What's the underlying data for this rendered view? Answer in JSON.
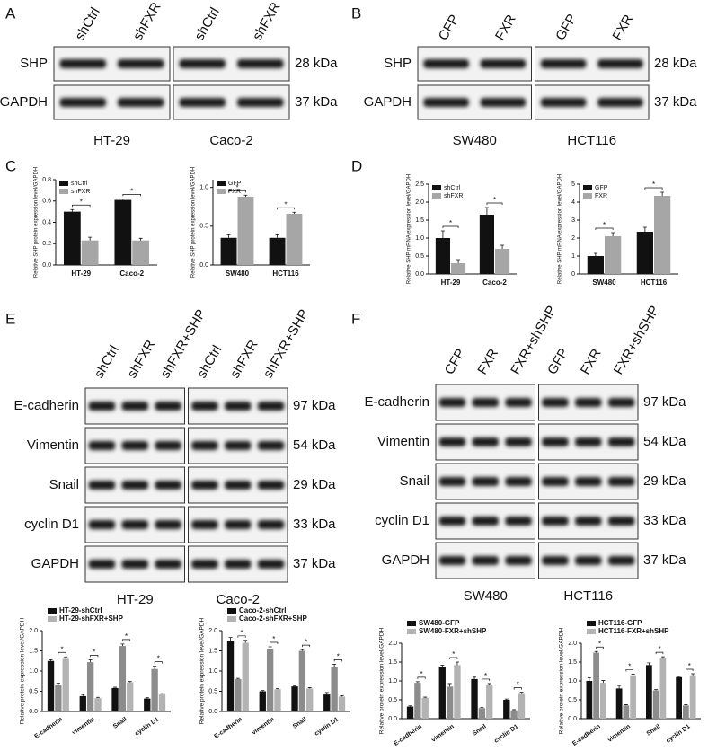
{
  "panel_labels": [
    "A",
    "B",
    "C",
    "D",
    "E",
    "F"
  ],
  "blots": [
    {
      "lanes": [
        "shCtrl",
        "shFXR",
        "shCtrl",
        "shFXR"
      ],
      "groups": [
        "HT-29",
        "Caco-2"
      ],
      "rows": [
        "SHP",
        "GAPDH"
      ],
      "sizes": [
        "28 kDa",
        "37 kDa"
      ]
    },
    {
      "lanes": [
        "CFP",
        "FXR",
        "GFP",
        "FXR"
      ],
      "groups": [
        "SW480",
        "HCT116"
      ],
      "rows": [
        "SHP",
        "GAPDH"
      ],
      "sizes": [
        "28 kDa",
        "37 kDa"
      ]
    },
    {
      "lanes": [
        "shCtrl",
        "shFXR",
        "shFXR+SHP",
        "shCtrl",
        "shFXR",
        "shFXR+SHP"
      ],
      "groups": [
        "HT-29",
        "Caco-2"
      ],
      "rows": [
        "E-cadherin",
        "Vimentin",
        "Snail",
        "cyclin D1",
        "GAPDH"
      ],
      "sizes": [
        "97 kDa",
        "54 kDa",
        "29 kDa",
        "33 kDa",
        "37 kDa"
      ]
    },
    {
      "lanes": [
        "CFP",
        "FXR",
        "FXR+shSHP",
        "GFP",
        "FXR",
        "FXR+shSHP"
      ],
      "groups": [
        "SW480",
        "HCT116"
      ],
      "rows": [
        "E-cadherin",
        "Vimentin",
        "Snail",
        "cyclin D1",
        "GAPDH"
      ],
      "sizes": [
        "97 kDa",
        "54 kDa",
        "29 kDa",
        "33 kDa",
        "37 kDa"
      ]
    }
  ],
  "chart_data": [
    {
      "type": "bar",
      "y_label": "Relative SHP protein expression level/GAPDH",
      "categories": [
        "HT-29",
        "Caco-2"
      ],
      "series": [
        {
          "name": "shCtrl",
          "color": "#111111",
          "values": [
            0.5,
            0.61
          ],
          "errors": [
            0.02,
            0.01
          ]
        },
        {
          "name": "shFXR",
          "color": "#a6a6a6",
          "values": [
            0.23,
            0.23
          ],
          "errors": [
            0.03,
            0.02
          ]
        }
      ],
      "ylim": [
        0,
        0.8
      ],
      "yticks": [
        {
          "value": 0,
          "label": "0.0"
        },
        0.2,
        0.4,
        0.6,
        0.8
      ],
      "legend": "upper left",
      "significance": [
        "*",
        "*"
      ]
    },
    {
      "type": "bar",
      "y_label": "Relative SHP protein expression level/GAPDH",
      "categories": [
        "SW480",
        "HCT116"
      ],
      "series": [
        {
          "name": "GFP",
          "color": "#111111",
          "values": [
            0.35,
            0.35
          ],
          "errors": [
            0.04,
            0.04
          ]
        },
        {
          "name": "FXR",
          "color": "#a6a6a6",
          "values": [
            0.88,
            0.66
          ],
          "errors": [
            0.02,
            0.02
          ]
        }
      ],
      "ylim": [
        0,
        1.1
      ],
      "yticks": [
        {
          "value": 0,
          "label": "0.0"
        },
        0.5,
        {
          "value": 1,
          "label": "1.0"
        }
      ],
      "legend": "upper left",
      "significance": [
        "*",
        "*"
      ]
    },
    {
      "type": "bar",
      "y_label": "Relative SHP mRNA expression level/GAPDH",
      "categories": [
        "HT-29",
        "Caco-2"
      ],
      "series": [
        {
          "name": "shCtrl",
          "color": "#111111",
          "values": [
            1.0,
            1.65
          ],
          "errors": [
            0.2,
            0.2
          ]
        },
        {
          "name": "shFXR",
          "color": "#a6a6a6",
          "values": [
            0.3,
            0.7
          ],
          "errors": [
            0.1,
            0.1
          ]
        }
      ],
      "ylim": [
        0,
        2.5
      ],
      "yticks": [
        {
          "value": 0,
          "label": "0.0"
        },
        0.5,
        {
          "value": 1,
          "label": "1.0"
        },
        1.5,
        {
          "value": 2,
          "label": "2.0"
        },
        2.5
      ],
      "legend": "upper left",
      "significance": [
        "*",
        "*"
      ]
    },
    {
      "type": "bar",
      "y_label": "Relative SHP mRNA expression level/GAPDH",
      "categories": [
        "SW480",
        "HCT116"
      ],
      "series": [
        {
          "name": "GFP",
          "color": "#111111",
          "values": [
            1.0,
            2.35
          ],
          "errors": [
            0.15,
            0.25
          ]
        },
        {
          "name": "FXR",
          "color": "#a6a6a6",
          "values": [
            2.1,
            4.35
          ],
          "errors": [
            0.2,
            0.2
          ]
        }
      ],
      "ylim": [
        0,
        5
      ],
      "yticks": [
        0,
        1,
        2,
        3,
        4,
        5
      ],
      "legend": "upper left",
      "significance": [
        "*",
        "*"
      ]
    },
    {
      "type": "bar",
      "y_label": "Relative protein expression level/GAPDH",
      "categories": [
        "E-cadherin",
        "vimentin",
        "Snail",
        "cyclin D1"
      ],
      "series": [
        {
          "name": "HT-29-shCtrl",
          "color": "#111111",
          "values": [
            1.25,
            0.38,
            0.58,
            0.32
          ],
          "errors": [
            0.03,
            0.04,
            0.02,
            0.02
          ]
        },
        {
          "color": "#8c8c8c",
          "values": [
            0.65,
            1.22,
            1.62,
            1.05
          ],
          "errors": [
            0.05,
            0.06,
            0.05,
            0.07
          ]
        },
        {
          "name": "HT-29-shFXR+SHP",
          "color": "#b3b3b3",
          "values": [
            1.3,
            0.33,
            0.72,
            0.42
          ],
          "errors": [
            0.05,
            0.02,
            0.02,
            0.02
          ]
        }
      ],
      "ylim": [
        0,
        2
      ],
      "yticks": [
        {
          "value": 0,
          "label": "0.0"
        },
        0.5,
        {
          "value": 1,
          "label": "1.0"
        },
        1.5,
        {
          "value": 2,
          "label": "2.0"
        }
      ],
      "legend": "top",
      "significance": [
        "*",
        "*",
        "*",
        "*"
      ]
    },
    {
      "type": "bar",
      "y_label": "Relative protein expression level/GAPDH",
      "categories": [
        "E-cadherin",
        "vimentin",
        "Snail",
        "cyclin D1"
      ],
      "series": [
        {
          "name": "Caco-2-shCtrl",
          "color": "#111111",
          "values": [
            1.75,
            0.5,
            0.62,
            0.42
          ],
          "errors": [
            0.08,
            0.02,
            0.02,
            0.05
          ]
        },
        {
          "color": "#8c8c8c",
          "values": [
            0.8,
            1.55,
            1.5,
            1.1
          ],
          "errors": [
            0.02,
            0.05,
            0.03,
            0.07
          ]
        },
        {
          "name": "Caco-2-shFXR+SHP",
          "color": "#b3b3b3",
          "values": [
            1.7,
            0.55,
            0.57,
            0.37
          ],
          "errors": [
            0.06,
            0.02,
            0.02,
            0.02
          ]
        }
      ],
      "ylim": [
        0,
        2
      ],
      "yticks": [
        {
          "value": 0,
          "label": "0.0"
        },
        0.5,
        {
          "value": 1,
          "label": "1.0"
        },
        1.5,
        {
          "value": 2,
          "label": "2.0"
        }
      ],
      "legend": "top",
      "significance": [
        "*",
        "*",
        "*",
        "*"
      ]
    },
    {
      "type": "bar",
      "y_label": "Relative protein expression level/GAPDH",
      "categories": [
        "E-cadherin",
        "vimentin",
        "Snail",
        "cyclin D1"
      ],
      "series": [
        {
          "name": "SW480-GFP",
          "color": "#111111",
          "values": [
            0.32,
            1.38,
            1.05,
            0.5
          ],
          "errors": [
            0.02,
            0.04,
            0.05,
            0.02
          ]
        },
        {
          "color": "#8c8c8c",
          "values": [
            0.95,
            0.85,
            0.28,
            0.22
          ],
          "errors": [
            0.03,
            0.08,
            0.02,
            0.02
          ]
        },
        {
          "name": "SW480-FXR+shSHP",
          "color": "#b3b3b3",
          "values": [
            0.55,
            1.42,
            0.88,
            0.68
          ],
          "errors": [
            0.02,
            0.08,
            0.05,
            0.02
          ]
        }
      ],
      "ylim": [
        0,
        2
      ],
      "yticks": [
        {
          "value": 0,
          "label": "0.0"
        },
        0.5,
        {
          "value": 1,
          "label": "1.0"
        },
        1.5,
        {
          "value": 2,
          "label": "2.0"
        }
      ],
      "legend": "top",
      "significance": [
        "*",
        "*",
        "*",
        "*"
      ]
    },
    {
      "type": "bar",
      "y_label": "Relative protein expression level/GAPDH",
      "categories": [
        "E-cadherin",
        "vimentin",
        "Snail",
        "cyclin D1"
      ],
      "series": [
        {
          "name": "HCT116-GFP",
          "color": "#111111",
          "values": [
            1.0,
            0.8,
            1.42,
            1.1
          ],
          "errors": [
            0.08,
            0.08,
            0.06,
            0.02
          ]
        },
        {
          "color": "#8c8c8c",
          "values": [
            1.75,
            0.35,
            0.75,
            0.35
          ],
          "errors": [
            0.03,
            0.02,
            0.02,
            0.02
          ]
        },
        {
          "name": "HCT116-FXR+shSHP",
          "color": "#b3b3b3",
          "values": [
            0.95,
            1.15,
            1.6,
            1.15
          ],
          "errors": [
            0.06,
            0.03,
            0.04,
            0.04
          ]
        }
      ],
      "ylim": [
        0,
        2
      ],
      "yticks": [
        {
          "value": 0,
          "label": "0.0"
        },
        0.5,
        {
          "value": 1,
          "label": "1.0"
        },
        1.5,
        {
          "value": 2,
          "label": "2.0"
        }
      ],
      "legend": "top",
      "significance": [
        "*",
        "*",
        "*",
        "*"
      ]
    }
  ]
}
